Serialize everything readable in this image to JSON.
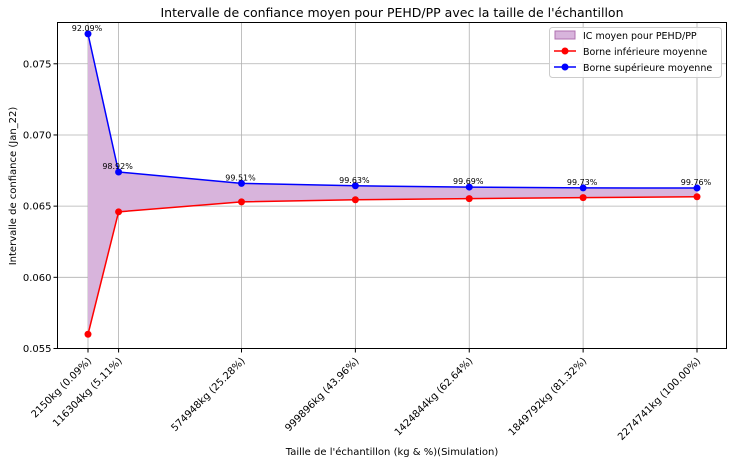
{
  "chart_data": {
    "type": "line",
    "title": "Intervalle de confiance moyen pour PEHD/PP avec la taille de l'échantillon",
    "xlabel": "Taille de l'échantillon (kg & %)(Simulation)",
    "ylabel": "Intervalle de confiance (Jan_22)",
    "x": [
      2150,
      116304,
      574948,
      999896,
      1424844,
      1849792,
      2274741
    ],
    "tick_labels": [
      "2150kg (0.09%)",
      "116304kg (5.11%)",
      "574948kg (25.28%)",
      "999896kg (43.96%)",
      "1424844kg (62.64%)",
      "1849792kg (81.32%)",
      "2274741kg (100.00%)"
    ],
    "annotations": [
      "92.09%",
      "98.92%",
      "99.51%",
      "99.63%",
      "99.69%",
      "99.73%",
      "99.76%"
    ],
    "series": [
      {
        "name": "Borne inférieure moyenne",
        "color": "#ff0000",
        "values": [
          0.056,
          0.0646,
          0.0653,
          0.06545,
          0.06553,
          0.0656,
          0.06566
        ]
      },
      {
        "name": "Borne supérieure moyenne",
        "color": "#0000ff",
        "values": [
          0.0771,
          0.0674,
          0.0666,
          0.06643,
          0.06634,
          0.06628,
          0.06627
        ]
      }
    ],
    "band": {
      "name": "IC moyen pour PEHD/PP",
      "color": "#d8b4dc",
      "edge": "#b070b0"
    },
    "yticks": [
      0.055,
      0.06,
      0.065,
      0.07,
      0.075
    ],
    "ytick_labels": [
      "0.055",
      "0.060",
      "0.065",
      "0.070",
      "0.075"
    ],
    "ylim": [
      0.055,
      0.0779
    ],
    "grid": true,
    "legend_position": "top-right"
  }
}
